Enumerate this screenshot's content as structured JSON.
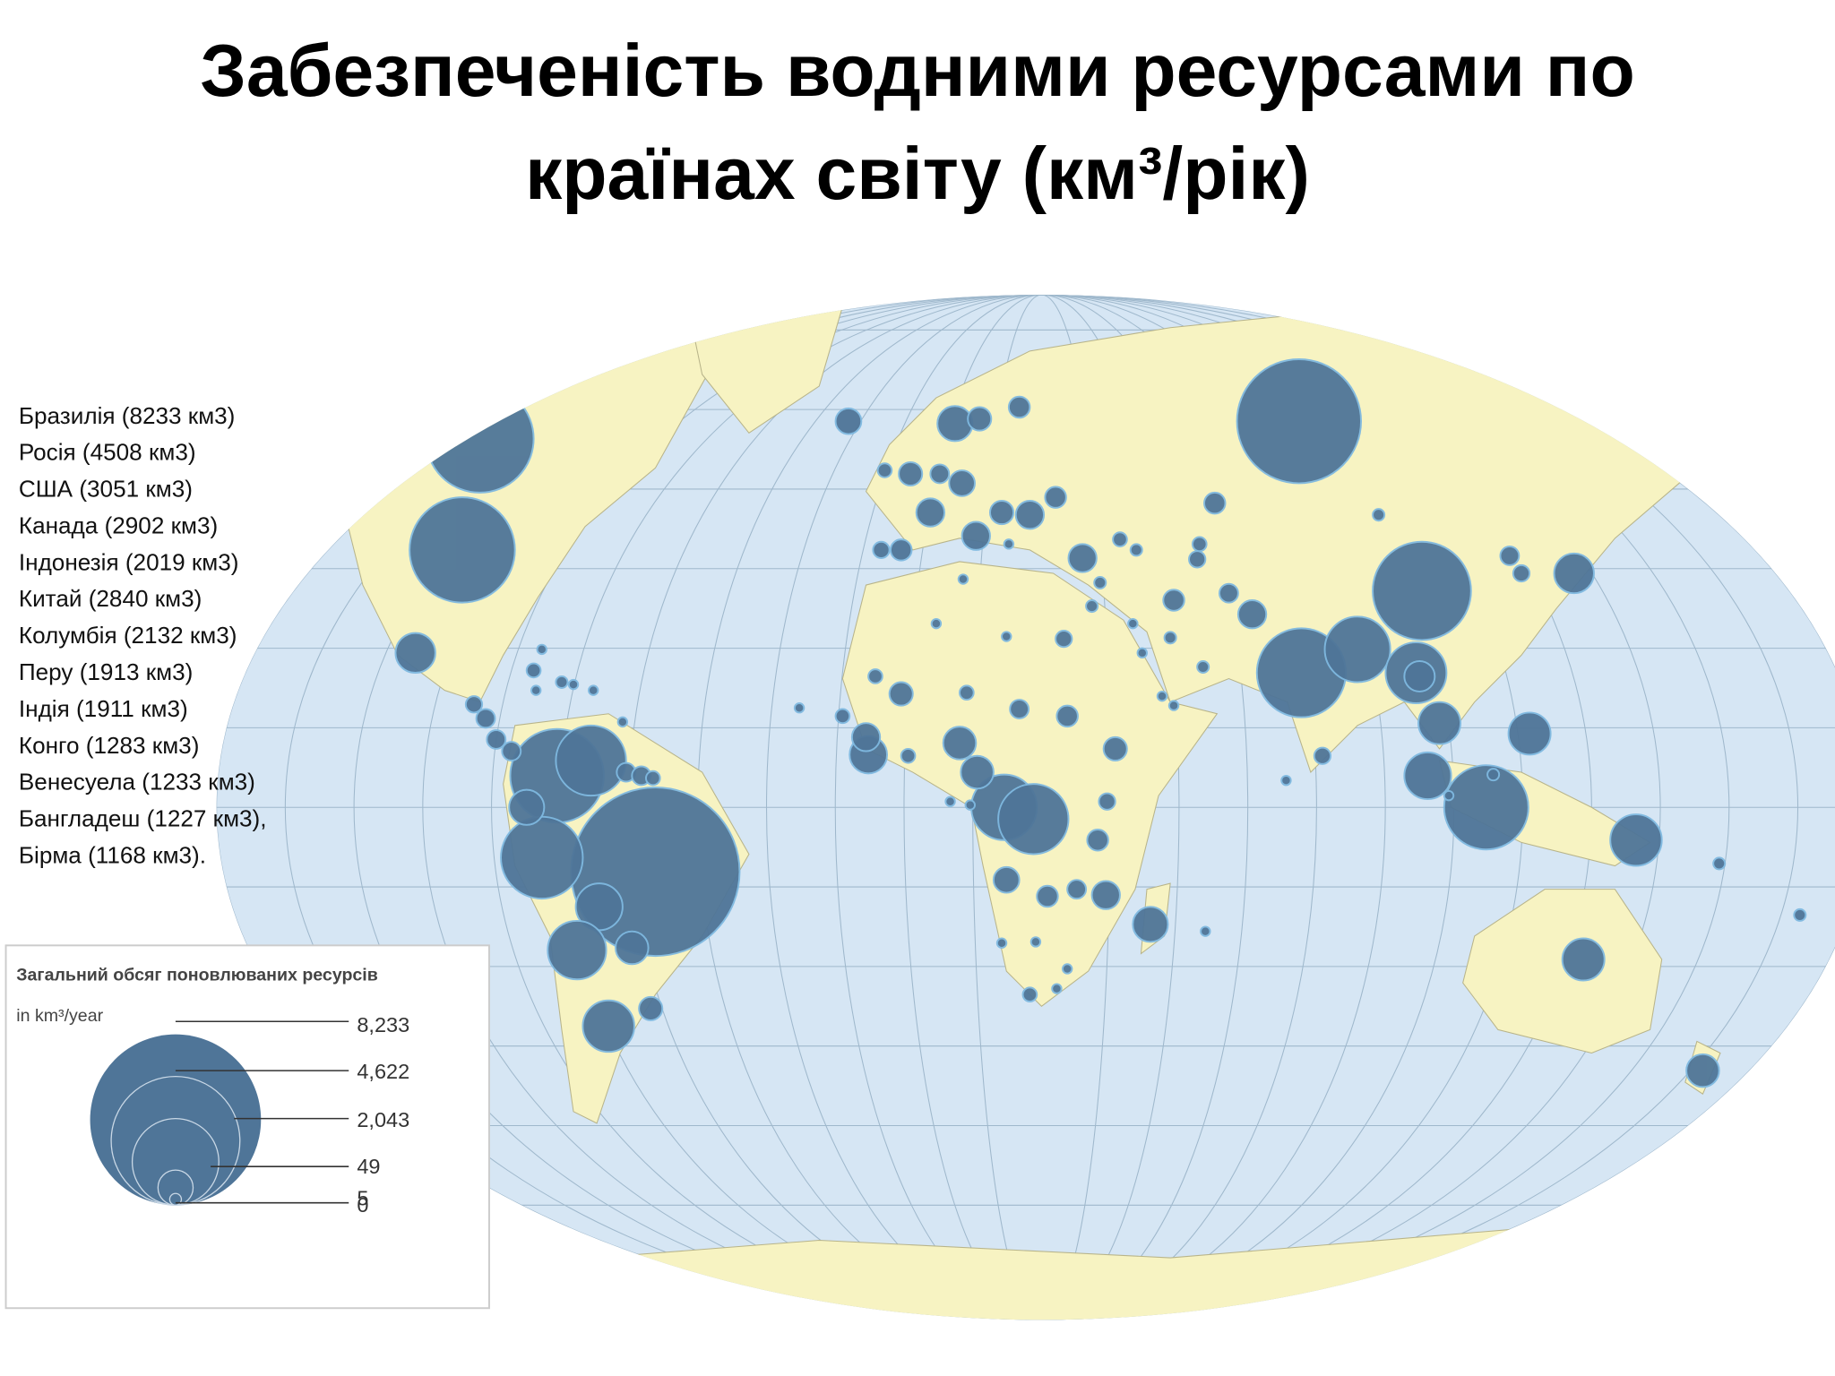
{
  "title": [
    "Забезпеченість водними ресурсами по",
    "країнах світу (км³/рік)"
  ],
  "notes": [
    "Бразилія (8233 км3)",
    "Росія (4508 км3)",
    "США (3051 км3)",
    "Канада (2902 км3)",
    "Індонезія (2019 км3)",
    "Китай (2840 км3)",
    "Колумбія (2132 км3)",
    "Перу (1913 км3)",
    " Індія (1911 км3)",
    "Конго (1283 км3)",
    "Венесуела (1233 км3)",
    "Бангладеш (1227 км3),",
    "Бірма (1168 км3)."
  ],
  "legend": {
    "title": "Загальний обсяг поновлюваних ресурсів",
    "unit": "in km³/year",
    "labels": [
      "8,233",
      "4,622",
      "2,043",
      "49",
      "5",
      "0"
    ]
  }
}
